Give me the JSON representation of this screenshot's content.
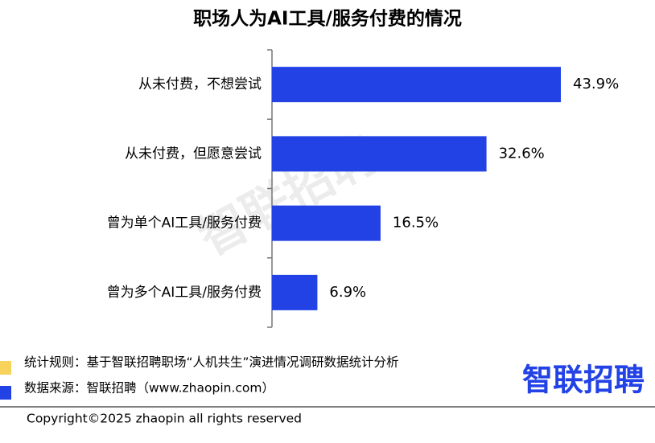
{
  "chart_data": {
    "type": "barh",
    "title": "职场人为AI工具/服务付费的情况",
    "categories": [
      "从未付费，不想尝试",
      "从未付费，但愿意尝试",
      "曾为单个AI工具/服务付费",
      "曾为多个AI工具/服务付费"
    ],
    "values": [
      43.9,
      32.6,
      16.5,
      6.9
    ],
    "value_labels": [
      "43.9%",
      "32.6%",
      "16.5%",
      "6.9%"
    ],
    "color": "#2242e6"
  },
  "footer": {
    "rule": "统计规则：基于智联招聘职场“人机共生”演进情况调研数据统计分析",
    "source": "数据来源：智联招聘（www.zhaopin.com）",
    "logo": "智联招聘",
    "watermark": "智联招聘",
    "copyright": "Copyright©2025 zhaopin all rights reserved"
  }
}
